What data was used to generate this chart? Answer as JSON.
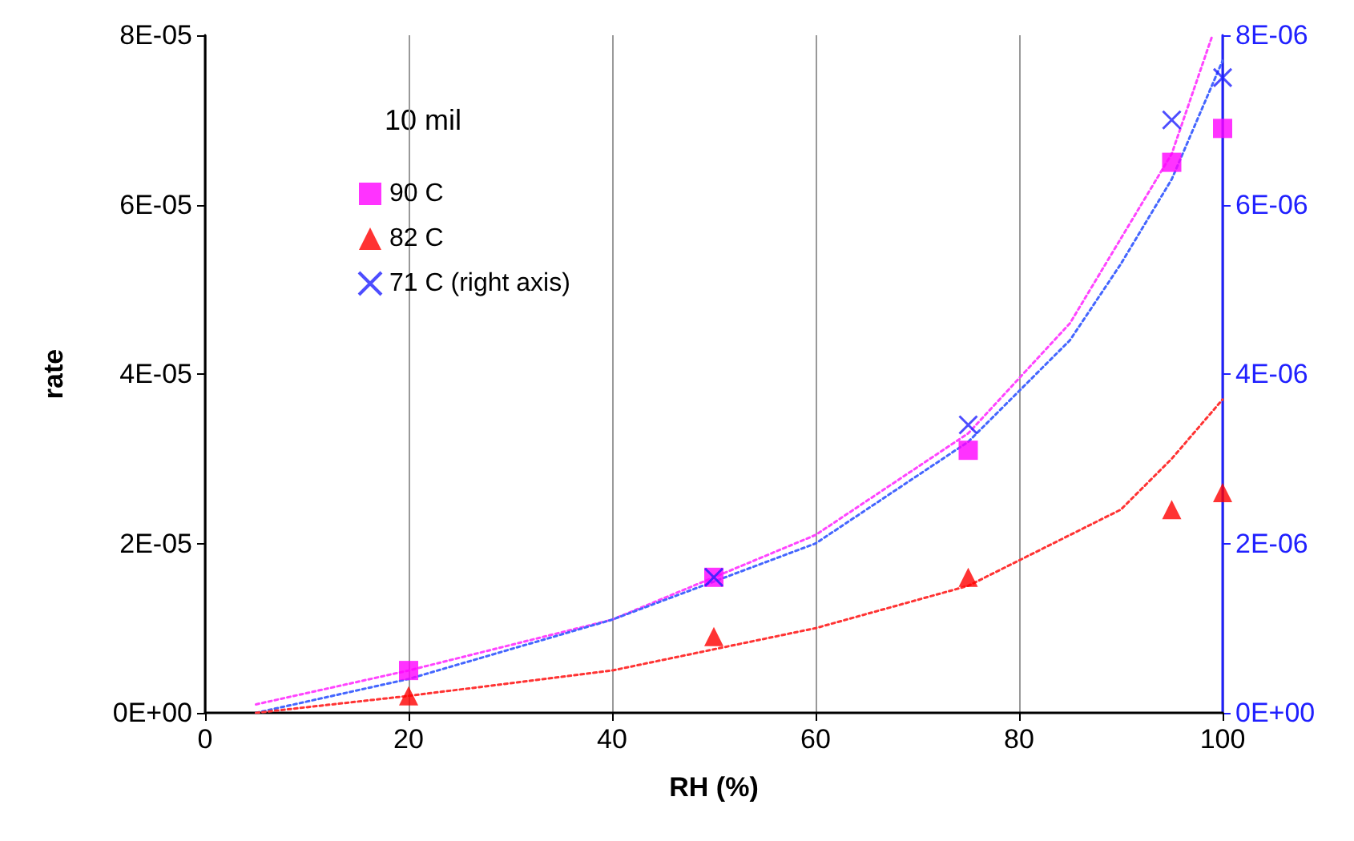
{
  "chart_data": {
    "type": "scatter",
    "xlabel": "RH (%)",
    "ylabel": "rate",
    "legend_title": "10 mil",
    "legend": "top left",
    "grid": "x",
    "xlim": [
      0,
      100
    ],
    "xticks": [
      0,
      20,
      40,
      60,
      80,
      100
    ],
    "ylim": [
      0,
      8e-05
    ],
    "yticks": [
      {
        "value": 0,
        "label": "0E+00"
      },
      {
        "value": 2e-05,
        "label": "2E-05"
      },
      {
        "value": 4e-05,
        "label": "4E-05"
      },
      {
        "value": 6e-05,
        "label": "6E-05"
      },
      {
        "value": 8e-05,
        "label": "8E-05"
      }
    ],
    "y2lim": [
      0,
      8e-06
    ],
    "y2ticks": [
      {
        "value": 0,
        "label": "0E+00"
      },
      {
        "value": 2e-06,
        "label": "2E-06"
      },
      {
        "value": 4e-06,
        "label": "4E-06"
      },
      {
        "value": 6e-06,
        "label": "6E-06"
      },
      {
        "value": 8e-06,
        "label": "8E-06"
      }
    ],
    "series": [
      {
        "name": "90 C",
        "color": "#ff00ff",
        "marker": "square",
        "x": [
          20,
          50,
          75,
          95,
          100
        ],
        "values": [
          5e-06,
          1.6e-05,
          3.1e-05,
          6.5e-05,
          6.9e-05
        ]
      },
      {
        "name": "82 C",
        "color": "#ff0000",
        "marker": "triangle",
        "x": [
          20,
          50,
          75,
          95,
          100
        ],
        "values": [
          2e-06,
          9e-06,
          1.6e-05,
          2.4e-05,
          2.6e-05
        ]
      },
      {
        "name": "71 C (right axis)",
        "color": "#2020ff",
        "marker": "cross",
        "axis": "y2",
        "x": [
          50,
          75,
          95,
          100
        ],
        "values": [
          1.6e-06,
          3.4e-06,
          7e-06,
          7.5e-06
        ]
      },
      {
        "type": "line",
        "color": "#ff44ff",
        "marker": "none",
        "line_style": "dotted",
        "x": [
          5,
          20,
          40,
          60,
          75,
          85,
          90,
          95,
          99
        ],
        "values": [
          1e-06,
          5e-06,
          1.1e-05,
          2.1e-05,
          3.3e-05,
          4.6e-05,
          5.6e-05,
          6.6e-05,
          8e-05
        ]
      },
      {
        "type": "line",
        "color": "#4466ff",
        "marker": "none",
        "line_style": "dotted",
        "axis": "y2",
        "x": [
          5,
          20,
          40,
          60,
          75,
          85,
          90,
          95,
          100
        ],
        "values": [
          0,
          4e-07,
          1.1e-06,
          2e-06,
          3.2e-06,
          4.4e-06,
          5.3e-06,
          6.3e-06,
          7.7e-06
        ]
      },
      {
        "type": "line",
        "color": "#ff3333",
        "marker": "none",
        "line_style": "dotted",
        "x": [
          5,
          20,
          40,
          60,
          75,
          90,
          95,
          100
        ],
        "values": [
          0,
          2e-06,
          5e-06,
          1e-05,
          1.5e-05,
          2.4e-05,
          3e-05,
          3.7e-05
        ]
      }
    ]
  }
}
